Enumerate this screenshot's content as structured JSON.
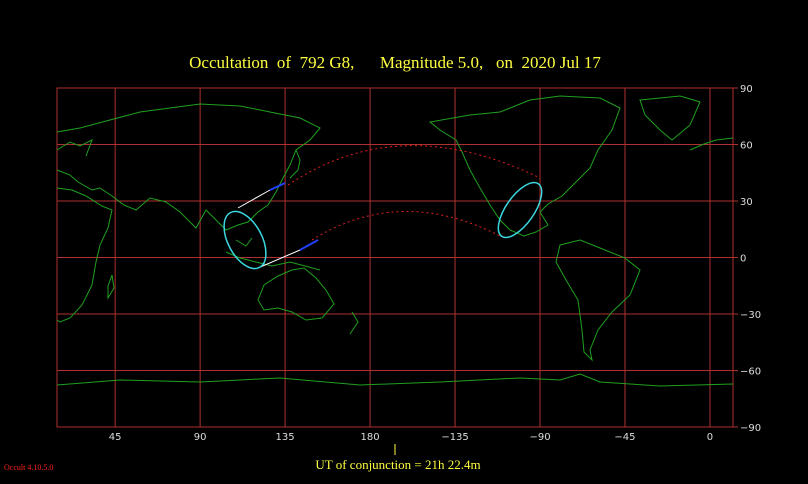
{
  "title": "Occultation  of  792 G8,      Magnitude 5.0,   on  2020 Jul 17",
  "map": {
    "xticks": [
      45,
      90,
      135,
      180,
      {
        "value": -135,
        "label": "−135"
      },
      {
        "value": -90,
        "label": "−90"
      },
      {
        "value": -45,
        "label": "−45"
      },
      0
    ],
    "yticks": [
      90,
      60,
      30,
      0,
      {
        "value": -30,
        "label": "−30"
      },
      {
        "value": -60,
        "label": "−60"
      },
      {
        "value": -90,
        "label": "−90"
      }
    ]
  },
  "conjunction": "UT of conjunction = 21h 22.4m",
  "version": "Occult 4.10.5.0"
}
